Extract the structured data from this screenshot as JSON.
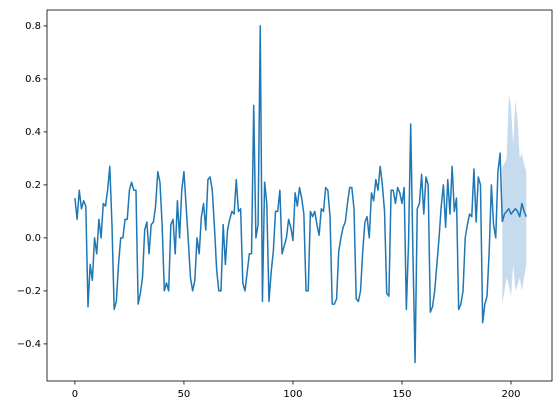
{
  "chart_data": {
    "type": "line",
    "xlim": [
      -12.8,
      218.8
    ],
    "ylim": [
      -0.54,
      0.86
    ],
    "xticks": [
      0,
      50,
      100,
      150,
      200
    ],
    "yticks": [
      {
        "value": -0.4,
        "label": "−0.4"
      },
      {
        "value": -0.2,
        "label": "−0.2"
      },
      {
        "value": 0,
        "label": "0.0"
      },
      0.2,
      0.4,
      0.6,
      0.8
    ],
    "series": [
      {
        "color": "#1f77b4",
        "x": [
          0,
          1,
          2,
          3,
          4,
          5,
          6,
          7,
          8,
          9,
          10,
          11,
          12,
          13,
          14,
          15,
          16,
          17,
          18,
          19,
          20,
          21,
          22,
          23,
          24,
          25,
          26,
          27,
          28,
          29,
          30,
          31,
          32,
          33,
          34,
          35,
          36,
          37,
          38,
          39,
          40,
          41,
          42,
          43,
          44,
          45,
          46,
          47,
          48,
          49,
          50,
          51,
          52,
          53,
          54,
          55,
          56,
          57,
          58,
          59,
          60,
          61,
          62,
          63,
          64,
          65,
          66,
          67,
          68,
          69,
          70,
          71,
          72,
          73,
          74,
          75,
          76,
          77,
          78,
          79,
          80,
          81,
          82,
          83,
          84,
          85,
          86,
          87,
          88,
          89,
          90,
          91,
          92,
          93,
          94,
          95,
          96,
          97,
          98,
          99,
          100,
          101,
          102,
          103,
          104,
          105,
          106,
          107,
          108,
          109,
          110,
          111,
          112,
          113,
          114,
          115,
          116,
          117,
          118,
          119,
          120,
          121,
          122,
          123,
          124,
          125,
          126,
          127,
          128,
          129,
          130,
          131,
          132,
          133,
          134,
          135,
          136,
          137,
          138,
          139,
          140,
          141,
          142,
          143,
          144,
          145,
          146,
          147,
          148,
          149,
          150,
          151,
          152,
          153,
          154,
          155,
          156,
          157,
          158,
          159,
          160,
          161,
          162,
          163,
          164,
          165,
          166,
          167,
          168,
          169,
          170,
          171,
          172,
          173,
          174,
          175,
          176,
          177,
          178,
          179,
          180,
          181,
          182,
          183,
          184,
          185,
          186,
          187,
          188,
          189,
          190,
          191,
          192,
          193,
          194,
          195,
          196
        ],
        "values": [
          0.15,
          0.07,
          0.18,
          0.11,
          0.14,
          0.12,
          -0.26,
          -0.1,
          -0.16,
          0.0,
          -0.06,
          0.07,
          0.0,
          0.13,
          0.12,
          0.18,
          0.27,
          0.05,
          -0.27,
          -0.24,
          -0.1,
          0.0,
          0.0,
          0.07,
          0.07,
          0.18,
          0.21,
          0.18,
          0.18,
          -0.25,
          -0.21,
          -0.15,
          0.03,
          0.06,
          -0.06,
          0.05,
          0.06,
          0.12,
          0.25,
          0.21,
          0.05,
          -0.2,
          -0.17,
          -0.2,
          0.05,
          0.07,
          -0.06,
          0.14,
          0.0,
          0.18,
          0.25,
          0.12,
          -0.01,
          -0.15,
          -0.2,
          -0.16,
          0.0,
          -0.06,
          0.08,
          0.13,
          0.03,
          0.22,
          0.23,
          0.18,
          0.04,
          -0.12,
          -0.2,
          -0.2,
          0.05,
          -0.1,
          0.03,
          0.07,
          0.1,
          0.09,
          0.22,
          0.1,
          0.11,
          -0.17,
          -0.2,
          -0.13,
          -0.06,
          -0.06,
          0.5,
          0.0,
          0.05,
          0.8,
          -0.24,
          0.21,
          0.13,
          -0.24,
          -0.13,
          -0.05,
          0.1,
          0.1,
          0.18,
          -0.06,
          -0.03,
          0.0,
          0.07,
          0.04,
          -0.01,
          0.17,
          0.12,
          0.19,
          0.15,
          0.09,
          -0.2,
          -0.2,
          0.1,
          0.08,
          0.1,
          0.05,
          0.01,
          0.11,
          0.1,
          0.19,
          0.18,
          0.08,
          -0.25,
          -0.25,
          -0.23,
          -0.05,
          0.0,
          0.04,
          0.06,
          0.13,
          0.19,
          0.19,
          0.11,
          -0.23,
          -0.24,
          -0.2,
          -0.05,
          0.06,
          0.08,
          0.0,
          0.17,
          0.14,
          0.22,
          0.18,
          0.27,
          0.2,
          0.1,
          -0.21,
          -0.22,
          0.18,
          0.18,
          0.13,
          0.19,
          0.17,
          0.13,
          0.19,
          -0.27,
          -0.02,
          0.43,
          -0.05,
          -0.47,
          0.11,
          0.13,
          0.24,
          0.09,
          0.23,
          0.2,
          -0.28,
          -0.26,
          -0.2,
          -0.1,
          0.0,
          0.12,
          0.2,
          0.04,
          0.22,
          0.09,
          0.27,
          0.1,
          0.15,
          -0.27,
          -0.25,
          -0.2,
          0.0,
          0.05,
          0.09,
          0.08,
          0.26,
          0.06,
          0.23,
          0.2,
          -0.32,
          -0.25,
          -0.22,
          -0.05,
          0.2,
          0.05,
          0.0,
          0.25,
          0.32,
          0.06
        ]
      },
      {
        "color": "#1f77b4",
        "x": [
          196,
          197,
          198,
          199,
          200,
          201,
          202,
          203,
          204,
          205,
          206,
          207
        ],
        "values": [
          0.06,
          0.09,
          0.1,
          0.11,
          0.09,
          0.1,
          0.11,
          0.1,
          0.08,
          0.13,
          0.1,
          0.08
        ]
      }
    ],
    "band": {
      "color": "#c6dbed",
      "x": [
        196,
        197,
        198,
        199,
        200,
        201,
        202,
        203,
        204,
        205,
        206,
        207
      ],
      "lower": [
        -0.25,
        -0.2,
        -0.15,
        -0.18,
        -0.22,
        -0.1,
        -0.2,
        -0.18,
        -0.15,
        -0.2,
        -0.15,
        -0.1
      ],
      "upper": [
        0.27,
        0.28,
        0.3,
        0.54,
        0.5,
        0.35,
        0.52,
        0.45,
        0.3,
        0.32,
        0.28,
        0.25
      ]
    }
  }
}
